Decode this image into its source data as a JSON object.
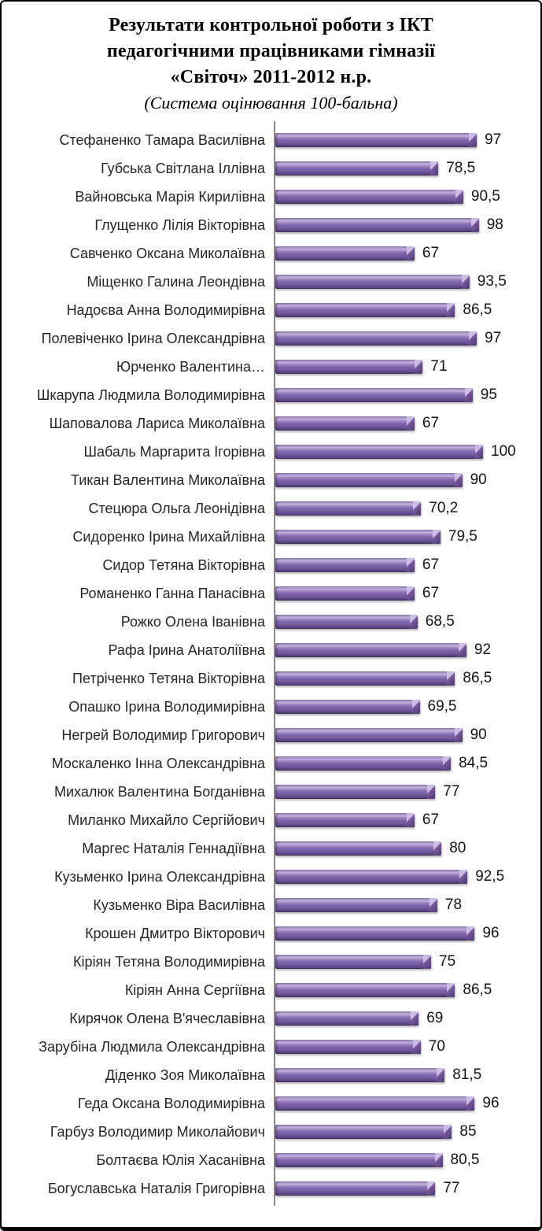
{
  "header": {
    "lines": [
      "Результати контрольної роботи з ІКТ",
      "педагогічними працівниками гімназії",
      "«Світоч» 2011-2012 н.р."
    ],
    "subtitle": "(Система оцінювання 100-бальна)"
  },
  "colors": {
    "bar_main": "#7d62a8",
    "bar_highlight": "#c4b3dd",
    "bar_dark": "#4e3a68",
    "axis": "#8a8a8a",
    "text": "#262626",
    "frame_border": "#000000"
  },
  "chart_data": {
    "type": "bar",
    "orientation": "horizontal",
    "title": "Результати контрольної роботи з ІКТ педагогічними працівниками гімназії «Світоч» 2011-2012 н.р.",
    "subtitle": "(Система оцінювання 100-бальна)",
    "xlabel": "",
    "ylabel": "",
    "xlim": [
      0,
      100
    ],
    "grid": false,
    "legend": false,
    "categories": [
      "Стефаненко Тамара Василівна",
      "Губська Світлана Іллівна",
      "Вайновська Марія Кирилівна",
      "Глущенко Лілія Вікторівна",
      "Савченко Оксана Миколаївна",
      "Міщенко Галина Леондівна",
      "Надоєва  Анна Володимирівна",
      "Полевіченко Ірина  Олександрівна",
      "Юрченко Валентина…",
      "Шкарупа Людмила Володимирівна",
      "Шаповалова Лариса Миколаївна",
      "Шабаль Маргарита Ігорівна",
      "Тикан Валентина Миколаївна",
      "Стецюра Ольга Леонідівна",
      "Сидоренко Ірина Михайлівна",
      "Сидор Тетяна Вікторівна",
      "Романенко Ганна Панасівна",
      "Рожко Олена Іванівна",
      "Рафа Ірина  Анатоліївна",
      "Петріченко Тетяна Вікторівна",
      "Опашко Ірина Володимирівна",
      "Негрей Володимир Григорович",
      "Москаленко Інна Олександрівна",
      "Михалюк Валентина  Богданівна",
      "Миланко Михайло Сергійович",
      "Маргес Наталія Геннадіївна",
      "Кузьменко Ірина  Олександрівна",
      "Кузьменко Віра Василівна",
      "Крошен Дмитро Вікторович",
      "Кіріян Тетяна Володимирівна",
      "Кіріян Анна Сергіївна",
      "Кирячок Олена В'ячеславівна",
      "Зарубіна Людмила Олександрівна",
      "Діденко Зоя Миколаївна",
      "Геда Оксана Володимирівна",
      "Гарбуз Володимир Миколайович",
      "Болтаєва Юлія Хасанівна",
      "Богуславська Наталія Григорівна"
    ],
    "values": [
      97,
      78.5,
      90.5,
      98,
      67,
      93.5,
      86.5,
      97,
      71,
      95,
      67,
      100,
      90,
      70.2,
      79.5,
      67,
      67,
      68.5,
      92,
      86.5,
      69.5,
      90,
      84.5,
      77,
      67,
      80,
      92.5,
      78,
      96,
      75,
      86.5,
      69,
      70,
      81.5,
      96,
      85,
      80.5,
      77
    ],
    "value_labels": [
      "97",
      "78,5",
      "90,5",
      "98",
      "67",
      "93,5",
      "86,5",
      "97",
      "71",
      "95",
      "67",
      "100",
      "90",
      "70,2",
      "79,5",
      "67",
      "67",
      "68,5",
      "92",
      "86,5",
      "69,5",
      "90",
      "84,5",
      "77",
      "67",
      "80",
      "92,5",
      "78",
      "96",
      "75",
      "86,5",
      "69",
      "70",
      "81,5",
      "96",
      "85",
      "80,5",
      "77"
    ]
  }
}
